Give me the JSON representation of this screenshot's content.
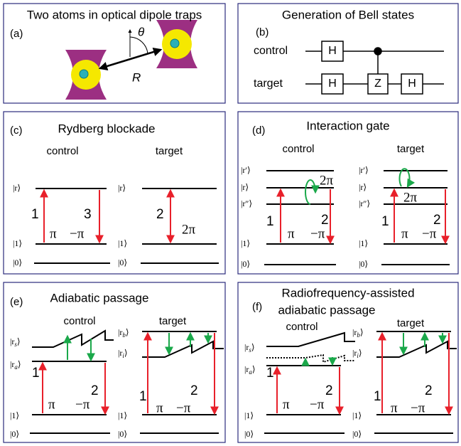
{
  "panels": [
    {
      "label": "(a)",
      "title": "Two atoms in optical dipole traps",
      "distance": "R",
      "angle": "θ"
    },
    {
      "label": "(b)",
      "title": "Generation of Bell states",
      "qubits": [
        "control",
        "target"
      ],
      "gates": [
        "H",
        "H",
        "Z",
        "H"
      ]
    },
    {
      "label": "(c)",
      "title": "Rydberg blockade",
      "columns": [
        "control",
        "target"
      ],
      "levels": [
        [
          "|r⟩",
          "|1⟩",
          "|0⟩"
        ],
        [
          "|r⟩",
          "|1⟩",
          "|0⟩"
        ]
      ],
      "annotations": [
        [
          "1",
          "π",
          "3",
          "−π"
        ],
        [
          "2",
          "2π"
        ]
      ]
    },
    {
      "label": "(d)",
      "title": "Interaction gate",
      "columns": [
        "control",
        "target"
      ],
      "levels": [
        [
          "|r′⟩",
          "|r⟩",
          "|r″⟩",
          "|1⟩",
          "|0⟩"
        ],
        [
          "|r′⟩",
          "|r⟩",
          "|r″⟩",
          "|1⟩",
          "|0⟩"
        ]
      ],
      "annotations": [
        [
          "1",
          "π",
          "2π",
          "2",
          "−π"
        ],
        [
          "2π",
          "1",
          "π",
          "2",
          "−π"
        ]
      ]
    },
    {
      "label": "(e)",
      "title": "Adiabatic passage",
      "columns": [
        "control",
        "target"
      ],
      "levels": [
        [
          {
            "open": "|r",
            "sub": "s",
            "close": "⟩"
          },
          {
            "open": "|r",
            "sub": "a",
            "close": "⟩"
          },
          "|1⟩",
          "|0⟩"
        ],
        [
          {
            "open": "|r",
            "sub": "b",
            "close": "⟩"
          },
          {
            "open": "|r",
            "sub": "i",
            "close": "⟩"
          },
          "|1⟩",
          "|0⟩"
        ]
      ],
      "annotations": [
        [
          "1",
          "π",
          "2",
          "−π"
        ],
        [
          "1",
          "π",
          "2",
          "−π"
        ]
      ]
    },
    {
      "label": "(f)",
      "title": [
        "Radiofrequency-assisted",
        "adiabatic passage"
      ],
      "columns": [
        "control",
        "target"
      ],
      "levels": [
        [
          {
            "open": "|r",
            "sub": "s",
            "close": "⟩"
          },
          {
            "open": "|r",
            "sub": "a",
            "close": "⟩"
          },
          "|1⟩",
          "|0⟩"
        ],
        [
          {
            "open": "|r",
            "sub": "b",
            "close": "⟩"
          },
          {
            "open": "|r",
            "sub": "i",
            "close": "⟩"
          },
          "|1⟩",
          "|0⟩"
        ]
      ],
      "annotations": [
        [
          "1",
          "π",
          "2",
          "−π"
        ],
        [
          "1",
          "π",
          "2",
          "−π"
        ]
      ]
    }
  ]
}
